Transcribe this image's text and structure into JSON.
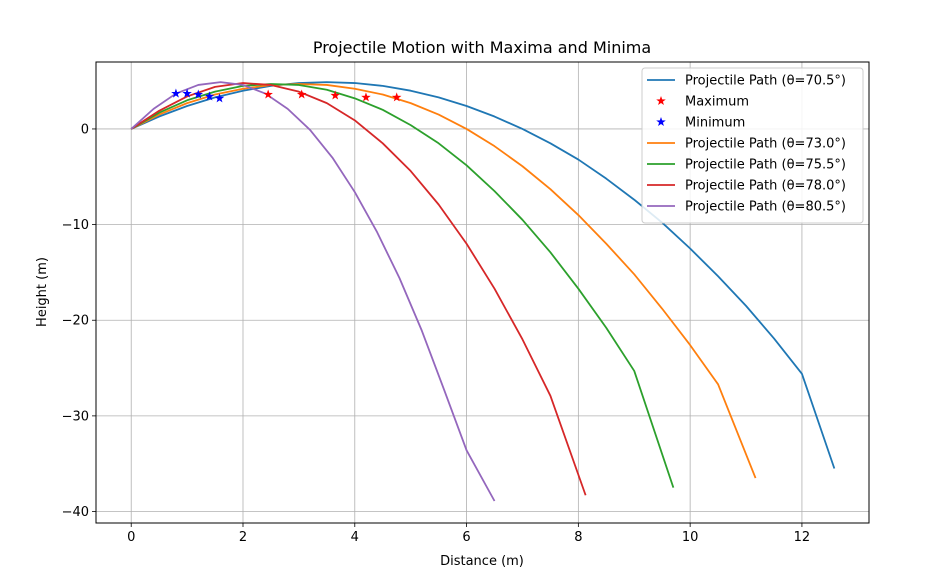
{
  "chart_data": {
    "type": "line",
    "title": "Projectile Motion with Maxima and Minima",
    "xlabel": "Distance (m)",
    "ylabel": "Height (m)",
    "xlim": [
      -0.63,
      13.2
    ],
    "ylim": [
      -41.2,
      7.0
    ],
    "xticks": [
      0,
      2,
      4,
      6,
      8,
      10,
      12
    ],
    "yticks": [
      0,
      -10,
      -20,
      -30,
      -40
    ],
    "xtick_labels": [
      "0",
      "2",
      "4",
      "6",
      "8",
      "10",
      "12"
    ],
    "ytick_labels": [
      "0",
      "−10",
      "−20",
      "−30",
      "−40"
    ],
    "grid": true,
    "legend_position": "top-right",
    "series": [
      {
        "name": "Projectile Path (θ=70.5°)",
        "color": "#1f77b4",
        "kind": "line",
        "x": [
          0,
          0.5,
          1.0,
          1.5,
          2.0,
          2.5,
          3.0,
          3.5,
          4.0,
          4.5,
          5.0,
          5.5,
          6.0,
          6.5,
          7.0,
          7.5,
          8.0,
          8.5,
          9.0,
          9.5,
          10.0,
          10.5,
          11.0,
          11.5,
          12.0,
          12.58
        ],
        "y": [
          0,
          1.3,
          2.4,
          3.3,
          4.0,
          4.5,
          4.8,
          4.9,
          4.8,
          4.5,
          4.0,
          3.3,
          2.4,
          1.3,
          0,
          -1.5,
          -3.2,
          -5.2,
          -7.4,
          -9.8,
          -12.5,
          -15.4,
          -18.5,
          -21.9,
          -25.6,
          -35.5
        ]
      },
      {
        "name": "Maximum",
        "color": "#ff0000",
        "kind": "star",
        "x": [
          2.45,
          3.05,
          3.65,
          4.2,
          4.75
        ],
        "y": [
          3.6,
          3.6,
          3.5,
          3.3,
          3.3
        ]
      },
      {
        "name": "Minimum",
        "color": "#0000ff",
        "kind": "star",
        "x": [
          0.8,
          1.0,
          1.2,
          1.4,
          1.58
        ],
        "y": [
          3.7,
          3.7,
          3.6,
          3.4,
          3.2
        ]
      },
      {
        "name": "Projectile Path (θ=73.0°)",
        "color": "#ff7f0e",
        "kind": "line",
        "x": [
          0,
          0.5,
          1.0,
          1.5,
          2.0,
          2.5,
          3.0,
          3.5,
          4.0,
          4.5,
          5.0,
          5.5,
          6.0,
          6.5,
          7.0,
          7.5,
          8.0,
          8.5,
          9.0,
          9.5,
          10.0,
          10.5,
          11.17
        ],
        "y": [
          0,
          1.5,
          2.7,
          3.6,
          4.2,
          4.6,
          4.7,
          4.6,
          4.2,
          3.6,
          2.7,
          1.5,
          0,
          -1.8,
          -3.9,
          -6.3,
          -9.0,
          -12.0,
          -15.2,
          -18.8,
          -22.6,
          -26.7,
          -36.5
        ]
      },
      {
        "name": "Projectile Path (θ=75.5°)",
        "color": "#2ca02c",
        "kind": "line",
        "x": [
          0,
          0.5,
          1.0,
          1.5,
          2.0,
          2.5,
          3.0,
          3.5,
          4.0,
          4.5,
          5.0,
          5.5,
          6.0,
          6.5,
          7.0,
          7.5,
          8.0,
          8.5,
          9.0,
          9.7
        ],
        "y": [
          0,
          1.7,
          3.0,
          3.9,
          4.5,
          4.7,
          4.6,
          4.1,
          3.2,
          2.0,
          0.4,
          -1.5,
          -3.8,
          -6.5,
          -9.5,
          -12.9,
          -16.7,
          -20.8,
          -25.3,
          -37.5
        ]
      },
      {
        "name": "Projectile Path (θ=78.0°)",
        "color": "#d62728",
        "kind": "line",
        "x": [
          0,
          0.5,
          1.0,
          1.5,
          2.0,
          2.5,
          3.0,
          3.5,
          4.0,
          4.5,
          5.0,
          5.5,
          6.0,
          6.5,
          7.0,
          7.5,
          8.13
        ],
        "y": [
          0,
          1.9,
          3.4,
          4.4,
          4.8,
          4.6,
          3.9,
          2.7,
          0.9,
          -1.5,
          -4.4,
          -7.9,
          -12.0,
          -16.7,
          -22.0,
          -27.9,
          -38.3
        ]
      },
      {
        "name": "Projectile Path (θ=80.5°)",
        "color": "#9467bd",
        "kind": "line",
        "x": [
          0,
          0.4,
          0.8,
          1.2,
          1.6,
          2.0,
          2.4,
          2.8,
          3.2,
          3.6,
          4.0,
          4.4,
          4.8,
          5.2,
          5.6,
          6.0,
          6.5
        ],
        "y": [
          0,
          2.1,
          3.7,
          4.6,
          4.9,
          4.6,
          3.7,
          2.1,
          -0.1,
          -3.0,
          -6.6,
          -10.8,
          -15.6,
          -21.1,
          -27.3,
          -33.6,
          -38.9
        ]
      }
    ]
  }
}
